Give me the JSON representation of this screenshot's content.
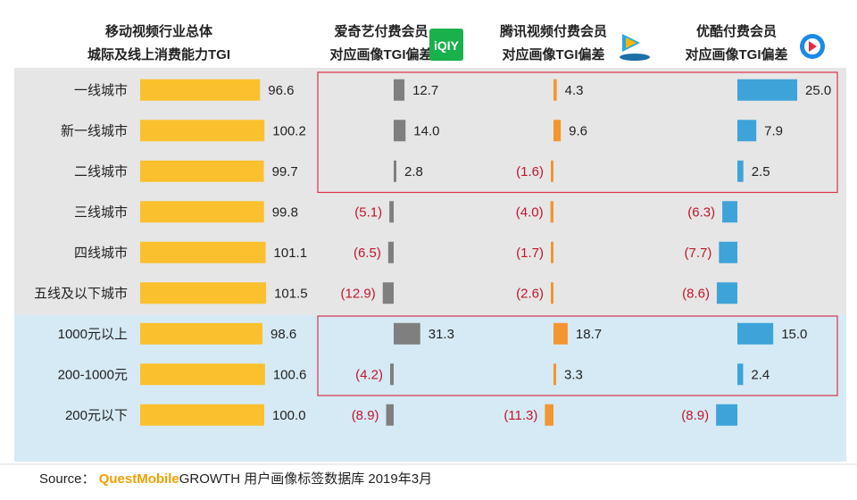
{
  "chart_data": {
    "type": "bar",
    "headers": [
      {
        "line1": "移动视频行业总体",
        "line2": "城际及线上消费能力TGI"
      },
      {
        "line1": "爱奇艺付费会员",
        "line2": "对应画像TGI偏差",
        "logo": "爱奇艺"
      },
      {
        "line1": "腾讯视频付费会员",
        "line2": "对应画像TGI偏差",
        "logo": "腾讯视频"
      },
      {
        "line1": "优酷付费会员",
        "line2": "对应画像TGI偏差",
        "logo": "优酷"
      }
    ],
    "categories": [
      "一线城市",
      "新一线城市",
      "二线城市",
      "三线城市",
      "四线城市",
      "五线及以下城市",
      "1000元以上",
      "200-1000元",
      "200元以下"
    ],
    "groups": [
      "city",
      "city",
      "city",
      "city",
      "city",
      "city",
      "spend",
      "spend",
      "spend"
    ],
    "series": [
      {
        "key": "total",
        "values": [
          96.6,
          100.2,
          99.7,
          99.8,
          101.1,
          101.5,
          98.6,
          100.6,
          100.0
        ],
        "labels": [
          "96.6",
          "100.2",
          "99.7",
          "99.8",
          "101.1",
          "101.5",
          "98.6",
          "100.6",
          "100.0"
        ]
      },
      {
        "key": "iqiyi",
        "values": [
          12.7,
          14.0,
          2.8,
          -5.1,
          -6.5,
          -12.9,
          31.3,
          -4.2,
          -8.9
        ],
        "labels": [
          "12.7",
          "14.0",
          "2.8",
          "(5.1)",
          "(6.5)",
          "(12.9)",
          "31.3",
          "(4.2)",
          "(8.9)"
        ]
      },
      {
        "key": "tencent",
        "values": [
          4.3,
          9.6,
          -1.6,
          -4.0,
          -1.7,
          -2.6,
          18.7,
          3.3,
          -11.3
        ],
        "labels": [
          "4.3",
          "9.6",
          "(1.6)",
          "(4.0)",
          "(1.7)",
          "(2.6)",
          "18.7",
          "3.3",
          "(11.3)"
        ]
      },
      {
        "key": "youku",
        "values": [
          25.0,
          7.9,
          2.5,
          -6.3,
          -7.7,
          -8.6,
          15.0,
          2.4,
          -8.9
        ],
        "labels": [
          "25.0",
          "7.9",
          "2.5",
          "(6.3)",
          "(7.7)",
          "(8.6)",
          "15.0",
          "2.4",
          "(8.9)"
        ]
      }
    ],
    "highlighted_rows": [
      [
        "一线城市",
        "二线城市"
      ],
      [
        "1000元以上",
        "200-1000元"
      ]
    ]
  },
  "colors": {
    "total": "#fbc02d",
    "iqiyi": "#7f7f7f",
    "tencent": "#f39530",
    "youku": "#3ea3d8",
    "negative_text": "#c0162a",
    "city_band": "#e6e6e6",
    "spend_band": "#d6eaf5",
    "highlight_border": "#d9334a",
    "iqiyi_logo": "#19b14c",
    "youku_logo": "#1b89e6"
  },
  "footer": {
    "prefix": "Source：",
    "brand": "QuestMobile",
    "rest": "GROWTH 用户画像标签数据库 2019年3月"
  }
}
